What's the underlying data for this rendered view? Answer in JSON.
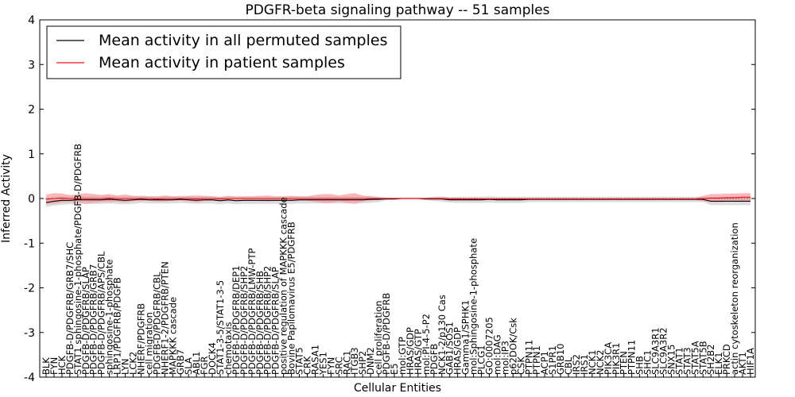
{
  "chart_data": {
    "type": "line",
    "title": "PDGFR-beta signaling pathway -- 51 samples",
    "xlabel": "Cellular Entities",
    "ylabel": "Inferred Activity",
    "ylim": [
      -4,
      4
    ],
    "yticks": [
      -4,
      -3,
      -2,
      -1,
      0,
      1,
      2,
      3,
      4
    ],
    "grid": false,
    "legend_position": "top-left",
    "colors": {
      "permuted": "#000000",
      "patient": "#e8101a",
      "patient_band": "#f4a2a5",
      "permuted_band": "#bfbfbf"
    },
    "categories": [
      "BLK",
      "FYN",
      "HCK",
      "PDGFB-D/PDGFRB/GRB7/SHC",
      "STAT1 sphingosine-1-phosphate/PDGFB-D/PDGFRB",
      "PDGFB-D/PDGFRB/SLAP",
      "PDGFB-D/PDGFRB/GRB7",
      "PDGFB-D/PDGFRB/APS/CBL",
      "sphingosine-1-phosphate",
      "LRP1/PDGFRB/PDGFB",
      "LYN",
      "LCK2",
      "NHERF/PDGFRB",
      "cell migration",
      "PDGFB-D/PDGFRB/CBL",
      "NHERF1-2/PDGFRB/PTEN",
      "MAPKKK cascade",
      "GRB7",
      "SLA",
      "ABL1",
      "FGR",
      "DOCK4",
      "STAT1-3-5/STAT1-3-5",
      "chemotaxis",
      "PDGFB-D/PDGFRB/DEP1",
      "PDGFB-D/PDGFRB/SHP2",
      "PDGFB-D/PDGFRB/LMW-PTP",
      "PDGFB-D/PDGFRB/SHB",
      "PDGFB-D/PDGFRB/SHP2",
      "PDGFB-D/PDGFRB/SLAP",
      "positive regulation of MAPKKK cascade",
      "Bovine Papilomavirus E5/PDGFRB",
      "STAT5",
      "CRK",
      "RASA1",
      "YES1",
      "FYN",
      "SRC",
      "RAC1",
      "ITGB3",
      "SHP2",
      "DNM2",
      "cell proliferation",
      "PDGFB-D/PDGFRB",
      "E5",
      "mol:GTP",
      "HRAS/GDP",
      "HRAS/GTP",
      "mol:PI-4-5-P2",
      "PDGFB",
      "NCK1-2/p130 Cas",
      "GAB1/SOS1",
      "HRAS/GDP",
      "Gamma1/SPHK1",
      "mol:Sphingosine-1-phosphate",
      "PLCG1",
      "GO:0007205",
      "mol:DAG",
      "mol:IP3",
      "p62DOK/Csk",
      "CSK",
      "PTPN11",
      "PTPN1",
      "ACP1",
      "S1PR1",
      "GRB10",
      "CBL",
      "IRS2",
      "IRS1",
      "NCK1",
      "NCK2",
      "PIK3CA",
      "PIK3R1",
      "PTEN",
      "PTPN11",
      "SHB",
      "SHC1",
      "SLC9A3R1",
      "SLC9A3R2",
      "SNX15",
      "STAT1",
      "STAT3",
      "STAT5A",
      "STAT5B",
      "SH2B2",
      "ELK1",
      "PRKCD",
      "actin cytoskeleton reorganization",
      "AKT1",
      "HIF1A"
    ],
    "series": [
      {
        "name": "Mean activity in all permuted samples",
        "color": "#000000",
        "values": [
          -0.09,
          -0.06,
          -0.04,
          -0.04,
          -0.03,
          -0.03,
          -0.03,
          -0.03,
          -0.02,
          -0.03,
          -0.04,
          -0.03,
          -0.02,
          -0.03,
          -0.03,
          -0.03,
          -0.03,
          -0.02,
          -0.03,
          -0.04,
          -0.03,
          -0.03,
          -0.05,
          -0.03,
          -0.05,
          -0.04,
          -0.04,
          -0.04,
          -0.04,
          -0.04,
          -0.04,
          -0.04,
          -0.03,
          -0.03,
          -0.03,
          -0.03,
          -0.03,
          -0.03,
          -0.03,
          -0.03,
          -0.03,
          -0.02,
          -0.02,
          -0.01,
          -0.01,
          0.0,
          0.0,
          0.0,
          -0.01,
          -0.01,
          -0.01,
          -0.03,
          -0.03,
          -0.03,
          -0.03,
          -0.03,
          -0.02,
          -0.03,
          -0.03,
          -0.03,
          -0.03,
          -0.02,
          -0.02,
          -0.02,
          -0.02,
          -0.02,
          -0.02,
          -0.02,
          -0.02,
          -0.02,
          -0.02,
          -0.02,
          -0.02,
          -0.02,
          -0.02,
          -0.02,
          -0.02,
          -0.02,
          -0.02,
          -0.02,
          -0.02,
          -0.02,
          -0.02,
          -0.02,
          -0.06,
          -0.06,
          -0.06,
          -0.06,
          -0.06,
          -0.06
        ],
        "band": [
          0.1,
          0.1,
          0.1,
          0.09,
          0.09,
          0.09,
          0.09,
          0.09,
          0.09,
          0.09,
          0.09,
          0.09,
          0.08,
          0.08,
          0.08,
          0.08,
          0.08,
          0.08,
          0.08,
          0.08,
          0.08,
          0.08,
          0.08,
          0.08,
          0.08,
          0.08,
          0.08,
          0.08,
          0.08,
          0.08,
          0.08,
          0.08,
          0.08,
          0.08,
          0.08,
          0.08,
          0.08,
          0.08,
          0.08,
          0.08,
          0.08,
          0.08,
          0.06,
          0.03,
          0.02,
          0.02,
          0.02,
          0.02,
          0.03,
          0.05,
          0.06,
          0.06,
          0.07,
          0.07,
          0.07,
          0.07,
          0.07,
          0.07,
          0.07,
          0.07,
          0.07,
          0.06,
          0.06,
          0.06,
          0.06,
          0.06,
          0.06,
          0.06,
          0.06,
          0.06,
          0.06,
          0.06,
          0.06,
          0.06,
          0.06,
          0.06,
          0.06,
          0.06,
          0.06,
          0.06,
          0.06,
          0.06,
          0.06,
          0.06,
          0.09,
          0.09,
          0.09,
          0.09,
          0.09,
          0.09
        ]
      },
      {
        "name": "Mean activity in patient samples",
        "color": "#e8101a",
        "values": [
          -0.02,
          0.0,
          0.01,
          0.0,
          0.0,
          0.0,
          0.0,
          0.0,
          0.01,
          0.0,
          0.0,
          0.0,
          0.0,
          0.0,
          -0.01,
          0.0,
          0.0,
          0.0,
          0.0,
          -0.01,
          0.0,
          0.0,
          -0.01,
          0.0,
          0.0,
          0.0,
          0.0,
          0.0,
          0.0,
          0.0,
          0.0,
          0.0,
          0.0,
          0.0,
          0.0,
          0.0,
          0.0,
          0.0,
          0.0,
          0.0,
          0.0,
          0.0,
          0.0,
          0.0,
          0.0,
          0.0,
          0.0,
          0.0,
          0.0,
          0.0,
          0.0,
          -0.01,
          -0.01,
          -0.01,
          -0.01,
          -0.01,
          -0.01,
          -0.01,
          -0.01,
          -0.01,
          -0.01,
          -0.01,
          -0.01,
          -0.01,
          -0.01,
          -0.01,
          -0.01,
          -0.01,
          -0.01,
          -0.01,
          -0.01,
          -0.01,
          -0.01,
          -0.01,
          -0.01,
          -0.01,
          -0.01,
          -0.01,
          -0.01,
          -0.01,
          -0.01,
          -0.01,
          -0.01,
          0.0,
          0.01,
          0.01,
          0.02,
          0.02,
          0.03,
          0.03
        ],
        "band": [
          0.11,
          0.12,
          0.1,
          0.08,
          0.09,
          0.12,
          0.1,
          0.08,
          0.09,
          0.07,
          0.09,
          0.06,
          0.06,
          0.05,
          0.06,
          0.07,
          0.05,
          0.05,
          0.06,
          0.08,
          0.06,
          0.05,
          0.05,
          0.06,
          0.05,
          0.05,
          0.05,
          0.06,
          0.07,
          0.05,
          0.05,
          0.06,
          0.05,
          0.05,
          0.08,
          0.1,
          0.1,
          0.07,
          0.1,
          0.12,
          0.07,
          0.05,
          0.03,
          0.02,
          0.02,
          0.02,
          0.02,
          0.02,
          0.02,
          0.03,
          0.03,
          0.03,
          0.03,
          0.02,
          0.03,
          0.02,
          0.02,
          0.02,
          0.02,
          0.02,
          0.02,
          0.02,
          0.02,
          0.02,
          0.02,
          0.02,
          0.02,
          0.02,
          0.02,
          0.02,
          0.02,
          0.02,
          0.02,
          0.02,
          0.02,
          0.02,
          0.02,
          0.02,
          0.02,
          0.02,
          0.02,
          0.02,
          0.02,
          0.06,
          0.09,
          0.09,
          0.09,
          0.09,
          0.09,
          0.09
        ]
      }
    ]
  }
}
